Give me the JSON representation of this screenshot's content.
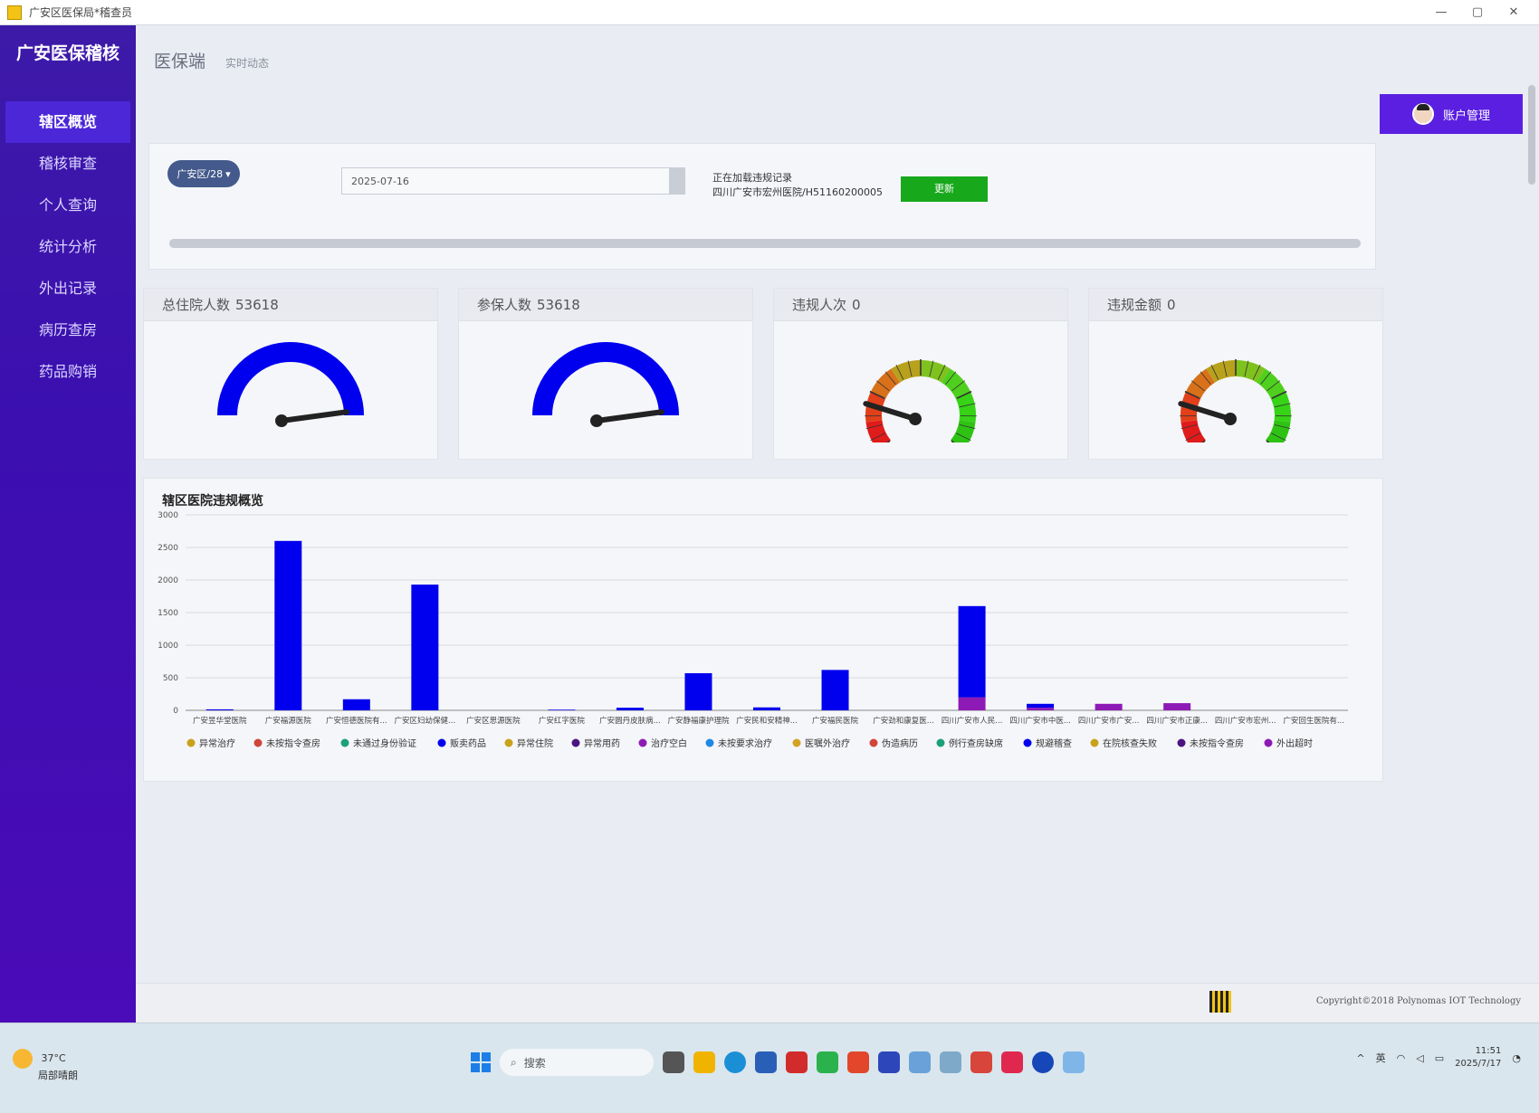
{
  "window": {
    "title": "广安区医保局*稽查员",
    "min": "—",
    "max": "▢",
    "close": "✕"
  },
  "sidebar": {
    "brand": "广安医保稽核",
    "items": [
      {
        "label": "辖区概览",
        "active": true
      },
      {
        "label": "稽核审查"
      },
      {
        "label": "个人查询"
      },
      {
        "label": "统计分析"
      },
      {
        "label": "外出记录"
      },
      {
        "label": "病历查房"
      },
      {
        "label": "药品购销"
      }
    ]
  },
  "header": {
    "title": "医保端",
    "subtitle": "实时动态"
  },
  "account": {
    "label": "账户管理"
  },
  "filter": {
    "district": "广安区/28",
    "date": "2025-07-16",
    "status_line1": "正在加载违规记录",
    "status_line2": "四川广安市宏州医院/H51160200005",
    "refresh_label": "更新",
    "progress": 1.0
  },
  "gauges": [
    {
      "label": "总住院人数",
      "value": "53618",
      "style": "blue"
    },
    {
      "label": "参保人数",
      "value": "53618",
      "style": "blue"
    },
    {
      "label": "违规人次",
      "value": "0",
      "style": "color"
    },
    {
      "label": "违规金额",
      "value": "0",
      "style": "color"
    }
  ],
  "chart_data": {
    "type": "bar",
    "title": "辖区医院违规概览",
    "ylim": [
      0,
      3000
    ],
    "yticks": [
      0,
      500,
      1000,
      1500,
      2000,
      2500,
      3000
    ],
    "categories": [
      "广安昱华堂医院",
      "广安福源医院",
      "广安恒德医院有...",
      "广安区妇幼保健...",
      "广安区思源医院",
      "广安红字医院",
      "广安圆丹皮肤病...",
      "广安静福康护理院",
      "广安民和安精神...",
      "广安福民医院",
      "广安劲和康复医...",
      "四川广安市人民...",
      "四川广安市中医...",
      "四川广安市广安...",
      "四川广安市正康...",
      "四川广安市宏州...",
      "广安回生医院有..."
    ],
    "series": [
      {
        "name": "贩卖药品",
        "color": "#0000ee",
        "values": [
          15,
          2600,
          170,
          1930,
          0,
          10,
          40,
          570,
          45,
          620,
          0,
          1400,
          60,
          0,
          0,
          0,
          0
        ]
      },
      {
        "name": "治疗空白",
        "color": "#8e1ab5",
        "values": [
          0,
          0,
          0,
          0,
          0,
          0,
          0,
          0,
          0,
          0,
          0,
          200,
          40,
          100,
          110,
          0,
          0
        ]
      }
    ],
    "legend": [
      {
        "name": "异常治疗",
        "color": "#c9a21b"
      },
      {
        "name": "未按指令查房",
        "color": "#d0453a"
      },
      {
        "name": "未通过身份验证",
        "color": "#1aa07a"
      },
      {
        "name": "贩卖药品",
        "color": "#0000ee"
      },
      {
        "name": "异常住院",
        "color": "#c9a21b"
      },
      {
        "name": "异常用药",
        "color": "#4b1580"
      },
      {
        "name": "治疗空白",
        "color": "#8e1ab5"
      },
      {
        "name": "未按要求治疗",
        "color": "#1e88e5"
      },
      {
        "name": "医嘱外治疗",
        "color": "#d4a326"
      },
      {
        "name": "伪造病历",
        "color": "#d0453a"
      },
      {
        "name": "例行查房缺席",
        "color": "#1aa07a"
      },
      {
        "name": "规避稽查",
        "color": "#0000ee"
      },
      {
        "name": "在院核查失败",
        "color": "#c9a21b"
      },
      {
        "name": "未按指令查房",
        "color": "#4b1580"
      },
      {
        "name": "外出超时",
        "color": "#8e1ab5"
      }
    ]
  },
  "footer": {
    "copyright": "Copyright©2018 Polynomas IOT Technology"
  },
  "taskbar": {
    "weather_temp": "37°C",
    "weather_desc": "局部晴朗",
    "search_placeholder": "搜索",
    "lang": "英",
    "time": "11:51",
    "date": "2025/7/17"
  }
}
